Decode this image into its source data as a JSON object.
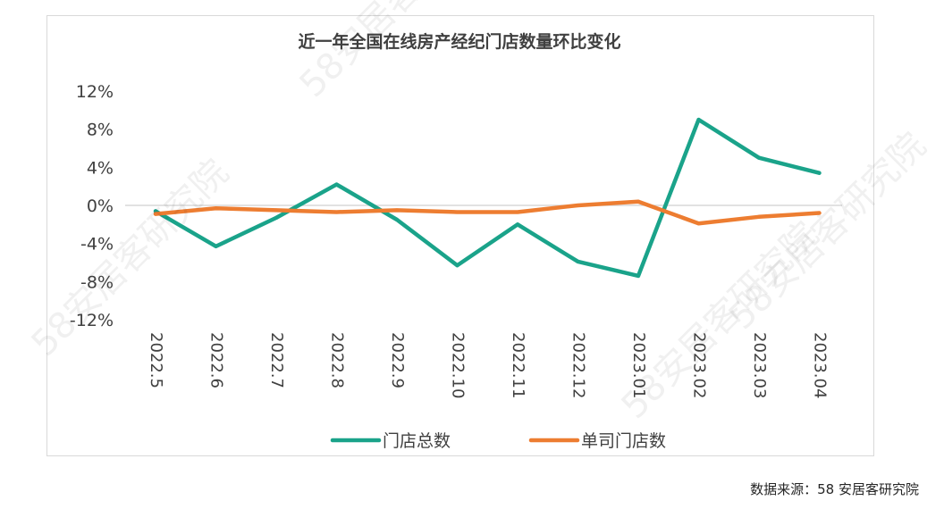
{
  "chart_data": {
    "type": "line",
    "title": "近一年全国在线房产经纪门店数量环比变化",
    "categories": [
      "2022.5",
      "2022.6",
      "2022.7",
      "2022.8",
      "2022.9",
      "2022.10",
      "2022.11",
      "2022.12",
      "2023.01",
      "2023.02",
      "2023.03",
      "2023.04"
    ],
    "yticks": [
      "12%",
      "8%",
      "4%",
      "0%",
      "-4%",
      "-8%",
      "-12%"
    ],
    "ylim": [
      -12,
      12
    ],
    "grid": false,
    "legend_position": "bottom",
    "series": [
      {
        "name": "门店总数",
        "color": "#1aa38a",
        "values": [
          -0.6,
          -4.3,
          -1.3,
          2.2,
          -1.5,
          -6.3,
          -2.0,
          -5.9,
          -7.4,
          9.0,
          5.0,
          3.4
        ]
      },
      {
        "name": "单司门店数",
        "color": "#ed7d31",
        "values": [
          -0.9,
          -0.3,
          -0.5,
          -0.7,
          -0.5,
          -0.7,
          -0.7,
          0.0,
          0.4,
          -1.9,
          -1.2,
          -0.8
        ]
      }
    ]
  },
  "source_note": "数据来源：58 安居客研究院",
  "watermark": "58安居客研究院"
}
